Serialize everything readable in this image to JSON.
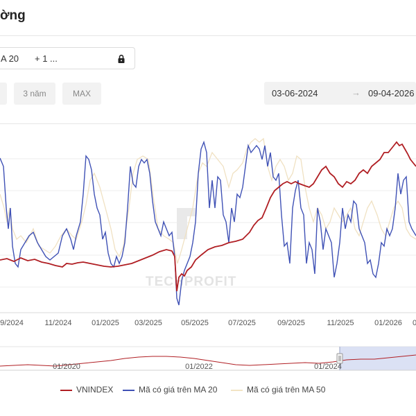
{
  "header": {
    "title": "ờng"
  },
  "indicators": {
    "chip1": "A 20",
    "chip2": "+ 1 ...",
    "lock_icon": "lock-icon"
  },
  "periods": [
    {
      "label": "3 năm"
    },
    {
      "label": "MAX"
    }
  ],
  "date_range": {
    "start": "03-06-2024",
    "arrow": "→",
    "end": "09-04-2026"
  },
  "watermark": "TECHPROFIT",
  "colors": {
    "vnindex": "#b01e23",
    "ma20": "#3f51b5",
    "ma50": "#f2e4c4",
    "grid": "#e8e8e8"
  },
  "chart_data": {
    "type": "line",
    "x_labels": [
      "9/2024",
      "11/2024",
      "01/2025",
      "03/2025",
      "05/2025",
      "07/2025",
      "09/2025",
      "11/2025",
      "01/2026",
      "0"
    ],
    "series": [
      {
        "name": "VNINDEX",
        "color": "#b01e23"
      },
      {
        "name": "Mã có giá trên MA 20",
        "color": "#3f51b5"
      },
      {
        "name": "Mã có giá trên MA 50",
        "color": "#f2e4c4"
      }
    ],
    "navigator": {
      "x_labels": [
        "01/2020",
        "01/2022",
        "01/2024"
      ]
    }
  }
}
